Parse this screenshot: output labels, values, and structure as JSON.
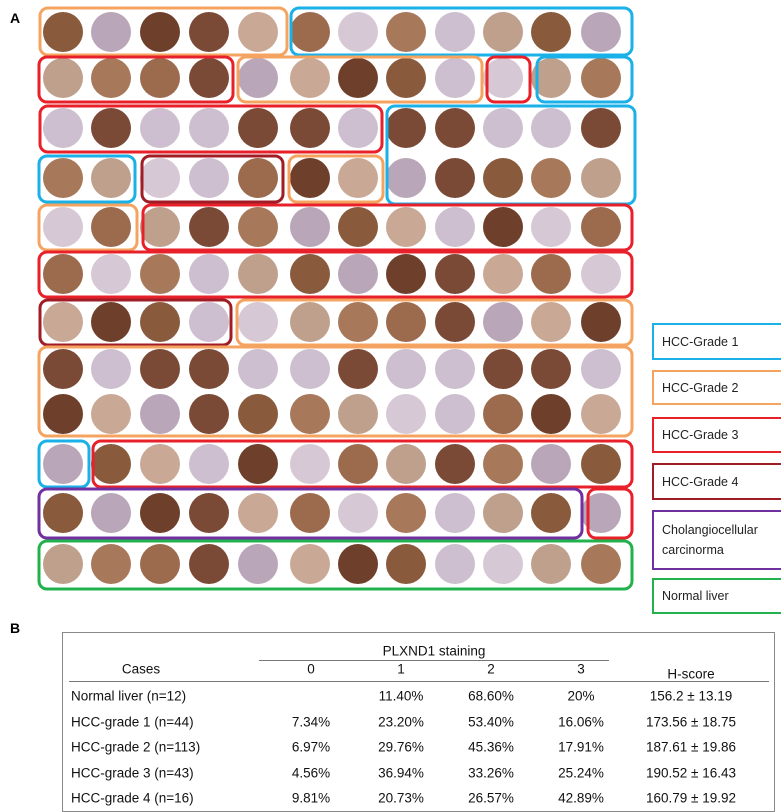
{
  "panel_a": {
    "label": "A",
    "legend": [
      "HCC-Grade  1",
      "HCC-Grade  2",
      "HCC-Grade  3",
      "HCC-Grade  4",
      "Cholangiocellular carcinorma",
      "Normal liver"
    ]
  },
  "panel_b": {
    "label": "B",
    "table": {
      "group_header": "PLXND1 staining",
      "columns": [
        "Cases",
        "0",
        "1",
        "2",
        "3",
        "H-score"
      ],
      "rows": [
        [
          "Normal liver (n=12)",
          null,
          "11.40%",
          "68.60%",
          "20%",
          "156.2 ± 13.19"
        ],
        [
          "HCC-grade 1 (n=44)",
          "7.34%",
          "23.20%",
          "53.40%",
          "16.06%",
          "173.56 ± 18.75"
        ],
        [
          "HCC-grade 2 (n=113)",
          "6.97%",
          "29.76%",
          "45.36%",
          "17.91%",
          "187.61 ± 19.86"
        ],
        [
          "HCC-grade 3 (n=43)",
          "4.56%",
          "36.94%",
          "33.26%",
          "25.24%",
          "190.52 ± 16.43"
        ],
        [
          "HCC-grade 4 (n=16)",
          "9.81%",
          "20.73%",
          "26.57%",
          "42.89%",
          "160.79 ± 19.92"
        ]
      ]
    }
  }
}
